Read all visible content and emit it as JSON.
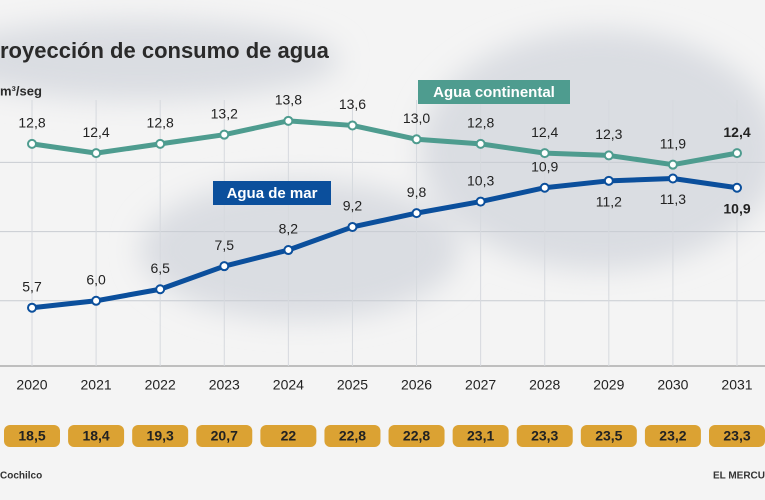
{
  "chart_data": {
    "type": "line",
    "title": "royección de consumo de agua",
    "y_label": "m³/seg",
    "categories": [
      "2020",
      "2021",
      "2022",
      "2023",
      "2024",
      "2025",
      "2026",
      "2027",
      "2028",
      "2029",
      "2030",
      "2031"
    ],
    "series": [
      {
        "name": "Agua continental",
        "color": "#4e9c8f",
        "values": [
          12.8,
          12.4,
          12.8,
          13.2,
          13.8,
          13.6,
          13.0,
          12.8,
          12.4,
          12.3,
          11.9,
          12.4
        ],
        "value_labels": [
          "12,8",
          "12,4",
          "12,8",
          "13,2",
          "13,8",
          "13,6",
          "13,0",
          "12,8",
          "12,4",
          "12,3",
          "11,9",
          "12,4"
        ]
      },
      {
        "name": "Agua de mar",
        "color": "#0b4f9c",
        "values": [
          5.7,
          6.0,
          6.5,
          7.5,
          8.2,
          9.2,
          9.8,
          10.3,
          10.9,
          11.2,
          11.3,
          10.9
        ],
        "value_labels": [
          "5,7",
          "6,0",
          "6,5",
          "7,5",
          "8,2",
          "9,2",
          "9,8",
          "10,3",
          "10,9",
          "11,2",
          "11,3",
          "10,9"
        ]
      }
    ],
    "totals": {
      "color": "#dba233",
      "values": [
        18.5,
        18.4,
        19.3,
        20.7,
        22,
        22.8,
        22.8,
        23.1,
        23.3,
        23.5,
        23.2,
        23.3
      ],
      "value_labels": [
        "18,5",
        "18,4",
        "19,3",
        "20,7",
        "22",
        "22,8",
        "22,8",
        "23,1",
        "23,3",
        "23,5",
        "23,2",
        "23,3"
      ]
    },
    "ylim": [
      3,
      17
    ],
    "yticks": [
      6,
      9,
      12
    ],
    "grid": true,
    "source": "Cochilco",
    "credit": "EL MERCU"
  }
}
